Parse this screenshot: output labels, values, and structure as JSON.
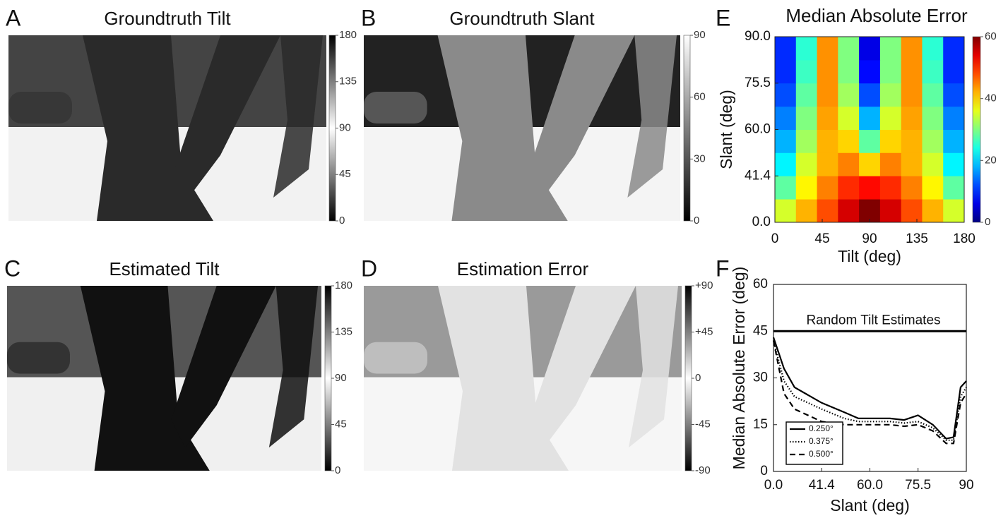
{
  "image_panels": [
    {
      "letter": "A",
      "title": "Groundtruth Tilt",
      "colorbar_lim": [
        0,
        180
      ],
      "colorbar_ticks": [
        0,
        45,
        90,
        135,
        180
      ]
    },
    {
      "letter": "B",
      "title": "Groundtruth Slant",
      "colorbar_lim": [
        0,
        90
      ],
      "colorbar_ticks": [
        0,
        30,
        60,
        90
      ]
    },
    {
      "letter": "C",
      "title": "Estimated Tilt",
      "colorbar_lim": [
        0,
        180
      ],
      "colorbar_ticks": [
        0,
        45,
        90,
        135,
        180
      ]
    },
    {
      "letter": "D",
      "title": "Estimation Error",
      "colorbar_lim": [
        -90,
        90
      ],
      "colorbar_ticks": [
        -90,
        -45,
        0,
        {
          "value": 45,
          "label": "+45"
        },
        {
          "value": 90,
          "label": "+90"
        }
      ]
    }
  ],
  "chart_data": [
    {
      "type": "heatmap",
      "letter": "E",
      "title": "Median Absolute Error",
      "xlabel": "Tilt (deg)",
      "ylabel": "Slant (deg)",
      "yscale": "one-minus-cosine",
      "xlim": [
        0,
        180
      ],
      "xticks": [
        0,
        45,
        90,
        135,
        180
      ],
      "ylim": [
        0,
        90
      ],
      "yticks": [
        {
          "value": 0,
          "label": "0.0"
        },
        {
          "value": 41.4,
          "label": "41.4"
        },
        {
          "value": 60,
          "label": "60.0"
        },
        {
          "value": 75.5,
          "label": "75.5"
        },
        {
          "value": 90,
          "label": "90.0"
        }
      ],
      "colormap": "jet",
      "clim": [
        0,
        60
      ],
      "cticks": [
        0,
        20,
        40,
        60
      ],
      "x": [
        10,
        30,
        50,
        70,
        90,
        110,
        130,
        150,
        170
      ],
      "y": [
        20.4,
        35.7,
        46.6,
        55.8,
        64.0,
        71.8,
        79.2,
        86.4
      ],
      "values": [
        [
          35,
          42,
          48,
          55,
          60,
          55,
          48,
          42,
          35
        ],
        [
          28,
          38,
          45,
          50,
          52,
          50,
          45,
          38,
          28
        ],
        [
          22,
          35,
          42,
          45,
          40,
          45,
          42,
          35,
          22
        ],
        [
          18,
          32,
          42,
          40,
          28,
          40,
          42,
          32,
          18
        ],
        [
          15,
          30,
          43,
          35,
          18,
          35,
          43,
          30,
          15
        ],
        [
          12,
          28,
          44,
          32,
          12,
          32,
          44,
          28,
          12
        ],
        [
          10,
          26,
          44,
          30,
          8,
          30,
          44,
          26,
          10
        ],
        [
          10,
          25,
          44,
          30,
          6,
          30,
          44,
          25,
          10
        ]
      ]
    },
    {
      "type": "line",
      "letter": "F",
      "xlabel": "Slant (deg)",
      "ylabel": "Median Absolute Error (deg)",
      "xscale": "one-minus-cosine",
      "xlim": [
        0,
        90
      ],
      "xticks": [
        {
          "value": 0,
          "label": "0.0"
        },
        {
          "value": 41.4,
          "label": "41.4"
        },
        {
          "value": 60,
          "label": "60.0"
        },
        {
          "value": 75.5,
          "label": "75.5"
        },
        90
      ],
      "ylim": [
        0,
        60
      ],
      "yticks": [
        0,
        15,
        30,
        45,
        60
      ],
      "reference_line": {
        "value": 45,
        "label": "Random Tilt Estimates"
      },
      "legend": "lower left",
      "x": [
        0,
        19,
        27,
        41.4,
        50.7,
        56,
        60,
        66.7,
        71.2,
        75.5,
        80,
        84,
        86.2,
        88.3,
        90
      ],
      "series": [
        {
          "name": "0.250°",
          "color": "#000000",
          "dash": "solid",
          "values": [
            43,
            33,
            27,
            22,
            19,
            17,
            17,
            17,
            16.5,
            18,
            15,
            10.5,
            11,
            27,
            29
          ]
        },
        {
          "name": "0.375°",
          "color": "#000000",
          "dash": "dotted",
          "values": [
            42,
            29,
            24,
            20,
            17,
            16,
            16,
            16,
            15.5,
            16,
            14,
            10,
            10,
            24,
            27
          ]
        },
        {
          "name": "0.500°",
          "color": "#000000",
          "dash": "dashed",
          "values": [
            42,
            25,
            20,
            16,
            15,
            15,
            15,
            15,
            14.5,
            15,
            13,
            9,
            9,
            22,
            25
          ]
        }
      ]
    }
  ]
}
